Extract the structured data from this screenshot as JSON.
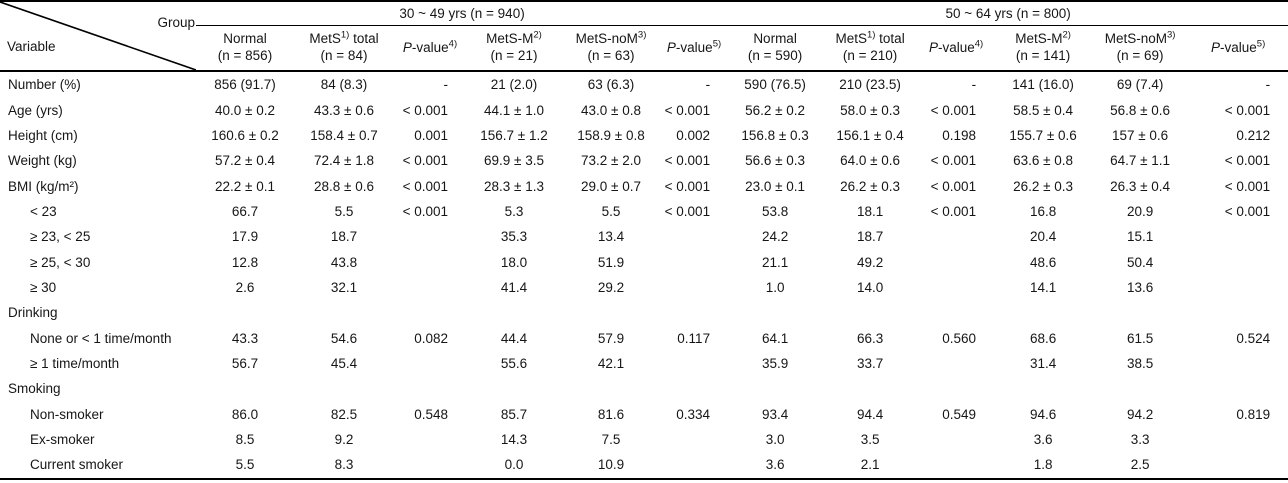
{
  "table": {
    "corner": {
      "group_label": "Group",
      "variable_label": "Variable"
    },
    "groups": [
      {
        "label": "30 ~ 49 yrs (n = 940)"
      },
      {
        "label": "50 ~ 64 yrs (n = 800)"
      }
    ],
    "columns": [
      {
        "a": "Normal",
        "line2": "(n = 856)"
      },
      {
        "a": "MetS",
        "sup": "1)",
        "b": " total",
        "line2": "(n = 84)"
      },
      {
        "it": "P",
        "a": "-value",
        "sup": "4)"
      },
      {
        "a": "MetS-M",
        "sup": "2)",
        "line2": "(n = 21)"
      },
      {
        "a": "MetS-noM",
        "sup": "3)",
        "line2": "(n = 63)"
      },
      {
        "it": "P",
        "a": "-value",
        "sup": "5)"
      },
      {
        "a": "Normal",
        "line2": "(n = 590)"
      },
      {
        "a": "MetS",
        "sup": "1)",
        "b": " total",
        "line2": "(n = 210)"
      },
      {
        "it": "P",
        "a": "-value",
        "sup": "4)"
      },
      {
        "a": "MetS-M",
        "sup": "2)",
        "line2": "(n = 141)"
      },
      {
        "a": "MetS-noM",
        "sup": "3)",
        "line2": "(n = 69)"
      },
      {
        "it": "P",
        "a": "-value",
        "sup": "5)"
      }
    ],
    "rows": [
      {
        "label": "Number (%)",
        "indent": false,
        "values": [
          "856 (91.7)",
          "84 (8.3)",
          "-",
          "21 (2.0)",
          "63 (6.3)",
          "-",
          "590 (76.5)",
          "210 (23.5)",
          "-",
          "141 (16.0)",
          "69 (7.4)",
          "-"
        ]
      },
      {
        "label": "Age (yrs)",
        "indent": false,
        "values": [
          "40.0 ± 0.2",
          "43.3 ± 0.6",
          "< 0.001",
          "44.1 ± 1.0",
          "43.0 ± 0.8",
          "< 0.001",
          "56.2 ± 0.2",
          "58.0 ± 0.3",
          "< 0.001",
          "58.5 ± 0.4",
          "56.8 ± 0.6",
          "< 0.001"
        ]
      },
      {
        "label": "Height (cm)",
        "indent": false,
        "values": [
          "160.6 ± 0.2",
          "158.4 ± 0.7",
          "0.001",
          "156.7 ± 1.2",
          "158.9 ± 0.8",
          "0.002",
          "156.8 ± 0.3",
          "156.1 ± 0.4",
          "0.198",
          "155.7 ± 0.6",
          "157 ± 0.6",
          "0.212"
        ]
      },
      {
        "label": "Weight (kg)",
        "indent": false,
        "values": [
          "57.2 ± 0.4",
          "72.4 ± 1.8",
          "< 0.001",
          "69.9 ± 3.5",
          "73.2 ± 2.0",
          "< 0.001",
          "56.6 ± 0.3",
          "64.0 ± 0.6",
          "< 0.001",
          "63.6 ± 0.8",
          "64.7 ± 1.1",
          "< 0.001"
        ]
      },
      {
        "label": "BMI (kg/m²)",
        "indent": false,
        "values": [
          "22.2 ± 0.1",
          "28.8 ± 0.6",
          "< 0.001",
          "28.3 ± 1.3",
          "29.0 ± 0.7",
          "< 0.001",
          "23.0 ± 0.1",
          "26.2 ± 0.3",
          "< 0.001",
          "26.2 ± 0.3",
          "26.3 ± 0.4",
          "< 0.001"
        ]
      },
      {
        "label": "< 23",
        "indent": true,
        "values": [
          "66.7",
          "5.5",
          "< 0.001",
          "5.3",
          "5.5",
          "< 0.001",
          "53.8",
          "18.1",
          "< 0.001",
          "16.8",
          "20.9",
          "< 0.001"
        ]
      },
      {
        "label": "≥ 23, < 25",
        "indent": true,
        "values": [
          "17.9",
          "18.7",
          "",
          "35.3",
          "13.4",
          "",
          "24.2",
          "18.7",
          "",
          "20.4",
          "15.1",
          ""
        ]
      },
      {
        "label": "≥ 25, < 30",
        "indent": true,
        "values": [
          "12.8",
          "43.8",
          "",
          "18.0",
          "51.9",
          "",
          "21.1",
          "49.2",
          "",
          "48.6",
          "50.4",
          ""
        ]
      },
      {
        "label": "≥ 30",
        "indent": true,
        "values": [
          "2.6",
          "32.1",
          "",
          "41.4",
          "29.2",
          "",
          "1.0",
          "14.0",
          "",
          "14.1",
          "13.6",
          ""
        ]
      },
      {
        "label": "Drinking",
        "indent": false,
        "values": [
          "",
          "",
          "",
          "",
          "",
          "",
          "",
          "",
          "",
          "",
          "",
          ""
        ]
      },
      {
        "label": "None or < 1 time/month",
        "indent": true,
        "values": [
          "43.3",
          "54.6",
          "0.082",
          "44.4",
          "57.9",
          "0.117",
          "64.1",
          "66.3",
          "0.560",
          "68.6",
          "61.5",
          "0.524"
        ]
      },
      {
        "label": "≥ 1 time/month",
        "indent": true,
        "values": [
          "56.7",
          "45.4",
          "",
          "55.6",
          "42.1",
          "",
          "35.9",
          "33.7",
          "",
          "31.4",
          "38.5",
          ""
        ]
      },
      {
        "label": "Smoking",
        "indent": false,
        "values": [
          "",
          "",
          "",
          "",
          "",
          "",
          "",
          "",
          "",
          "",
          "",
          ""
        ]
      },
      {
        "label": "Non-smoker",
        "indent": true,
        "values": [
          "86.0",
          "82.5",
          "0.548",
          "85.7",
          "81.6",
          "0.334",
          "93.4",
          "94.4",
          "0.549",
          "94.6",
          "94.2",
          "0.819"
        ]
      },
      {
        "label": "Ex-smoker",
        "indent": true,
        "values": [
          "8.5",
          "9.2",
          "",
          "14.3",
          "7.5",
          "",
          "3.0",
          "3.5",
          "",
          "3.6",
          "3.3",
          ""
        ]
      },
      {
        "label": "Current smoker",
        "indent": true,
        "values": [
          "5.5",
          "8.3",
          "",
          "0.0",
          "10.9",
          "",
          "3.6",
          "2.1",
          "",
          "1.8",
          "2.5",
          ""
        ]
      }
    ]
  }
}
